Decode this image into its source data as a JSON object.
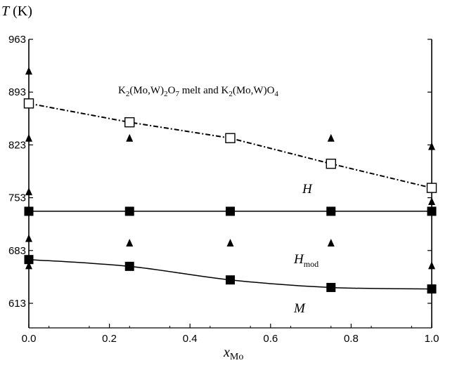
{
  "chart_data": {
    "type": "scatter",
    "xlabel": {
      "main": "x",
      "sub": "Mo"
    },
    "ylabel": {
      "main": "T",
      "unit": " (K)"
    },
    "xlim": [
      0.0,
      1.0
    ],
    "ylim": [
      580,
      963
    ],
    "xticks": [
      "0.0",
      "0.2",
      "0.4",
      "0.6",
      "0.8",
      "1.0"
    ],
    "yticks": [
      "613",
      "683",
      "753",
      "823",
      "893",
      "963"
    ],
    "colors": {
      "ink": "#000000",
      "open_marker_fill": "#ffffff"
    },
    "series": [
      {
        "marker": "open-square",
        "line": "dash-dot",
        "points": [
          {
            "x": 0.0,
            "y": 878
          },
          {
            "x": 0.25,
            "y": 853
          },
          {
            "x": 0.5,
            "y": 832
          },
          {
            "x": 0.75,
            "y": 798
          },
          {
            "x": 1.0,
            "y": 766
          }
        ]
      },
      {
        "marker": "filled-square",
        "line": "solid",
        "points": [
          {
            "x": 0.0,
            "y": 735
          },
          {
            "x": 0.25,
            "y": 735
          },
          {
            "x": 0.5,
            "y": 735
          },
          {
            "x": 0.75,
            "y": 735
          },
          {
            "x": 1.0,
            "y": 735
          }
        ]
      },
      {
        "marker": "filled-square",
        "line": "solid-smooth",
        "points": [
          {
            "x": 0.0,
            "y": 671
          },
          {
            "x": 0.25,
            "y": 662
          },
          {
            "x": 0.5,
            "y": 644
          },
          {
            "x": 0.75,
            "y": 634
          },
          {
            "x": 1.0,
            "y": 632
          }
        ]
      },
      {
        "marker": "filled-triangle",
        "line": "none",
        "points": [
          {
            "x": 0.0,
            "y": 920
          },
          {
            "x": 0.0,
            "y": 831
          },
          {
            "x": 0.0,
            "y": 760
          },
          {
            "x": 0.0,
            "y": 698
          },
          {
            "x": 0.0,
            "y": 662
          },
          {
            "x": 0.25,
            "y": 831
          },
          {
            "x": 0.25,
            "y": 692
          },
          {
            "x": 0.5,
            "y": 692
          },
          {
            "x": 0.75,
            "y": 831
          },
          {
            "x": 0.75,
            "y": 692
          },
          {
            "x": 1.0,
            "y": 820
          },
          {
            "x": 1.0,
            "y": 747
          },
          {
            "x": 1.0,
            "y": 662
          }
        ]
      }
    ],
    "annotations": {
      "melt_label": {
        "p1": "K",
        "s1": "2",
        "p2": "(Mo,W)",
        "s2": "2",
        "p3": "O",
        "s3": "7",
        "p4": " melt and K",
        "s4": "2",
        "p5": "(Mo,W)O",
        "s5": "4"
      },
      "region_H": "H",
      "region_Hmod": {
        "main": "H",
        "sub": "mod"
      },
      "region_M": "M"
    }
  }
}
